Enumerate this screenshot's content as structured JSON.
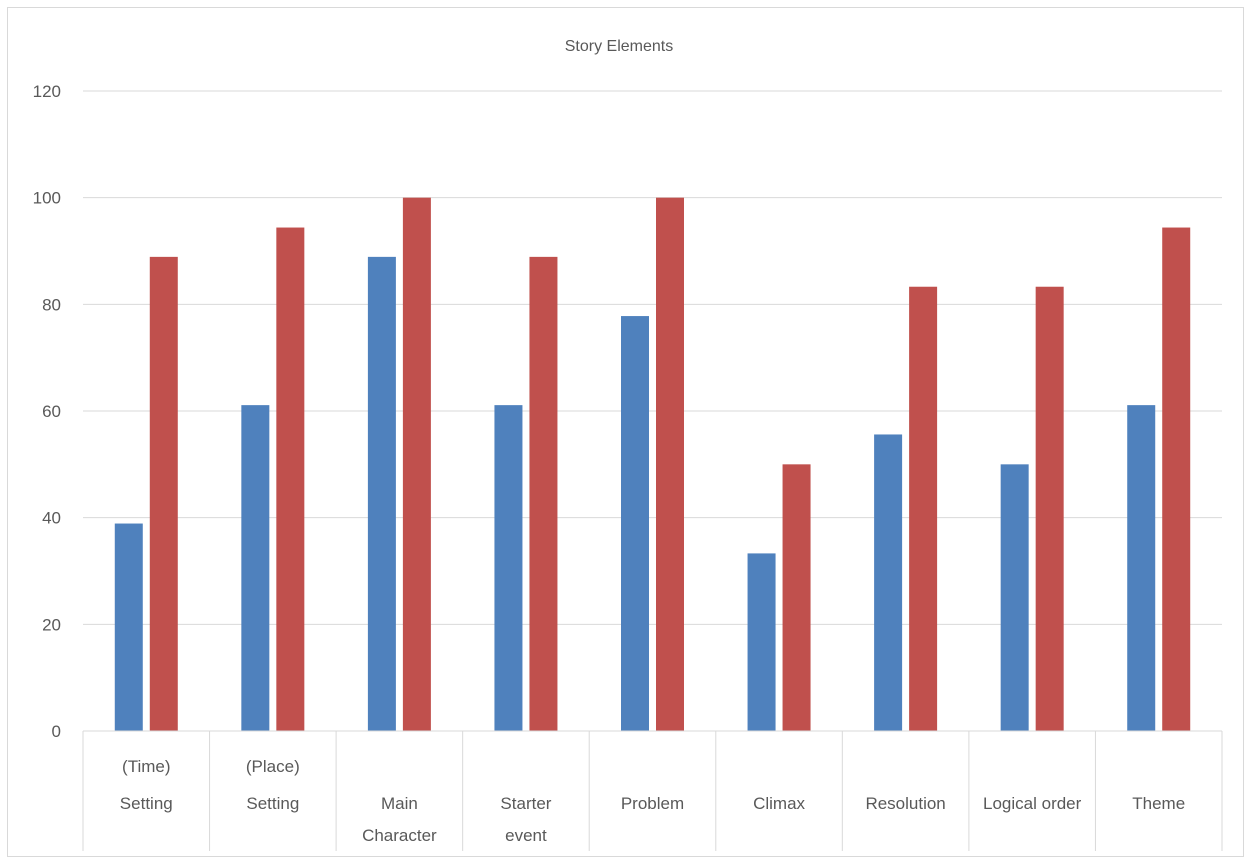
{
  "chart_data": {
    "type": "bar",
    "title": "Story Elements",
    "xlabel": "",
    "ylabel": "",
    "ylim": [
      0,
      120
    ],
    "yticks": [
      "0",
      "20",
      "40",
      "60",
      "80",
      "100",
      "120"
    ],
    "grid": true,
    "legend": "none",
    "categories": [
      [
        "(Time)",
        "Setting"
      ],
      [
        "(Place)",
        "Setting"
      ],
      [
        "",
        "Main",
        "Character"
      ],
      [
        "",
        "Starter",
        "event"
      ],
      [
        "",
        "Problem"
      ],
      [
        "",
        "Climax"
      ],
      [
        "",
        "Resolution"
      ],
      [
        "",
        "Logical order"
      ],
      [
        "",
        "Theme"
      ]
    ],
    "series": [
      {
        "values": [
          38.9,
          61.1,
          88.9,
          61.1,
          77.8,
          33.3,
          55.6,
          50.0,
          61.1
        ],
        "color": "#4f81bd"
      },
      {
        "values": [
          88.9,
          94.4,
          100,
          88.9,
          100,
          50.0,
          83.3,
          83.3,
          94.4
        ],
        "color": "#c0504d"
      }
    ],
    "colors": {
      "grid": "#d9d9d9",
      "axis": "#d9d9d9",
      "text": "#595959"
    }
  }
}
